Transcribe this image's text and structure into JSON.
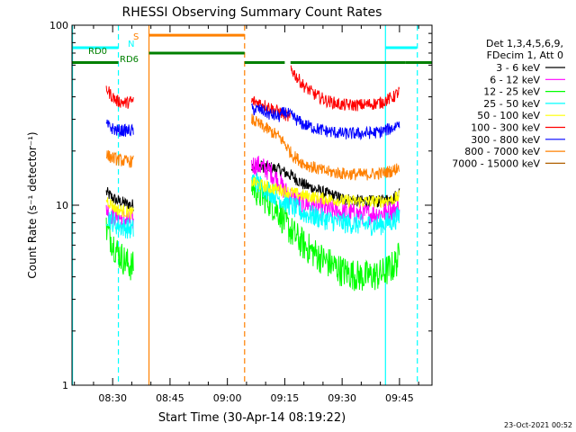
{
  "chart_data": {
    "type": "line",
    "title": "RHESSI Observing Summary Count Rates",
    "xlabel": "Start Time (30-Apr-14 08:19:22)",
    "ylabel": "Count Rate (s⁻¹ detector⁻¹)",
    "yscale": "log",
    "ylim": [
      1,
      100
    ],
    "xlim_minutes": [
      "08:19:22",
      "09:53:30"
    ],
    "y_ticks": [
      "1",
      "10",
      "100"
    ],
    "x_ticks": [
      {
        "label": "08:30",
        "t": "08:30"
      },
      {
        "label": "08:45",
        "t": "08:45"
      },
      {
        "label": "09:00",
        "t": "09:00"
      },
      {
        "label": "09:15",
        "t": "09:15"
      },
      {
        "label": "09:30",
        "t": "09:30"
      },
      {
        "label": "09:45",
        "t": "09:45"
      }
    ],
    "legend": {
      "placement": "right",
      "header": [
        "Det 1,3,4,5,6,9,",
        "FDecim 1, Att 0"
      ]
    },
    "series": [
      {
        "name": "3 - 6 keV",
        "color": "#000000",
        "segments": [
          {
            "x": [
              "08:28:20",
              "08:29:30",
              "08:31:00",
              "08:33:30",
              "08:35:30"
            ],
            "y": [
              11.8,
              11.2,
              10.6,
              10.2,
              10.0
            ]
          },
          {
            "x": [
              "09:06:20",
              "09:08:30",
              "09:11:00",
              "09:13:30",
              "09:15:00",
              "09:17:00",
              "09:20:00",
              "09:25:00",
              "09:30:00",
              "09:35:00",
              "09:40:00",
              "09:43:30",
              "09:45:00"
            ],
            "y": [
              16.5,
              16.5,
              16.2,
              15.8,
              15.2,
              14.5,
              13.0,
              11.8,
              10.9,
              10.5,
              10.5,
              11.0,
              11.8
            ]
          }
        ]
      },
      {
        "name": "6 - 12 keV",
        "color": "#ff00ff",
        "segments": [
          {
            "x": [
              "08:28:20",
              "08:29:30",
              "08:31:00",
              "08:33:30",
              "08:35:30"
            ],
            "y": [
              9.6,
              9.0,
              8.6,
              8.3,
              8.2
            ]
          },
          {
            "x": [
              "09:06:20",
              "09:08:30",
              "09:11:00",
              "09:13:30",
              "09:15:00",
              "09:17:00",
              "09:20:00",
              "09:25:00",
              "09:30:00",
              "09:35:00",
              "09:40:00",
              "09:43:30",
              "09:45:00"
            ],
            "y": [
              16.8,
              16.5,
              15.5,
              13.5,
              12.0,
              11.0,
              10.3,
              9.6,
              9.1,
              8.9,
              9.0,
              9.4,
              9.9
            ]
          }
        ]
      },
      {
        "name": "12 - 25 keV",
        "color": "#00ff00",
        "segments": [
          {
            "x": [
              "08:28:20",
              "08:29:30",
              "08:31:00",
              "08:33:30",
              "08:35:30"
            ],
            "y": [
              7.4,
              6.6,
              5.6,
              4.8,
              4.5
            ]
          },
          {
            "x": [
              "09:06:20",
              "09:08:30",
              "09:11:00",
              "09:13:30",
              "09:15:00",
              "09:17:00",
              "09:20:00",
              "09:25:00",
              "09:30:00",
              "09:35:00",
              "09:40:00",
              "09:43:30",
              "09:45:00"
            ],
            "y": [
              13.0,
              11.5,
              10.5,
              9.2,
              8.0,
              7.0,
              6.0,
              5.0,
              4.3,
              4.0,
              4.1,
              4.6,
              5.2
            ]
          }
        ]
      },
      {
        "name": "25 - 50 keV",
        "color": "#00ffff",
        "segments": [
          {
            "x": [
              "08:28:20",
              "08:29:30",
              "08:31:00",
              "08:33:30",
              "08:35:30"
            ],
            "y": [
              8.8,
              8.3,
              7.8,
              7.5,
              7.3
            ]
          },
          {
            "x": [
              "09:06:20",
              "09:08:30",
              "09:11:00",
              "09:13:30",
              "09:15:00",
              "09:17:00",
              "09:20:00",
              "09:25:00",
              "09:30:00",
              "09:35:00",
              "09:40:00",
              "09:43:30",
              "09:45:00"
            ],
            "y": [
              14.0,
              13.0,
              12.0,
              11.0,
              10.4,
              9.8,
              9.0,
              8.4,
              8.0,
              7.8,
              7.8,
              8.2,
              8.8
            ]
          }
        ]
      },
      {
        "name": "50 - 100 keV",
        "color": "#ffff00",
        "segments": [
          {
            "x": [
              "08:28:20",
              "08:29:30",
              "08:31:00",
              "08:33:30",
              "08:35:30"
            ],
            "y": [
              10.8,
              10.2,
              9.5,
              9.2,
              9.0
            ]
          },
          {
            "x": [
              "09:06:20",
              "09:08:30",
              "09:11:00",
              "09:13:30",
              "09:15:00",
              "09:17:00",
              "09:20:00",
              "09:25:00",
              "09:30:00",
              "09:35:00",
              "09:40:00",
              "09:43:30",
              "09:45:00"
            ],
            "y": [
              13.5,
              13.0,
              12.5,
              12.2,
              12.0,
              11.7,
              11.3,
              10.9,
              10.6,
              10.5,
              10.5,
              10.8,
              11.2
            ]
          }
        ]
      },
      {
        "name": "100 - 300 keV",
        "color": "#ff0000",
        "segments": [
          {
            "x": [
              "08:28:20",
              "08:29:30",
              "08:31:00",
              "08:33:30",
              "08:35:30"
            ],
            "y": [
              45,
              41,
              38,
              37,
              38
            ]
          },
          {
            "x": [
              "09:06:20",
              "09:08:30",
              "09:11:00",
              "09:13:30",
              "09:15:00",
              "09:16:30"
            ],
            "y": [
              38,
              37,
              35,
              33,
              32,
              30
            ]
          },
          {
            "x": [
              "09:16:30",
              "09:18:00",
              "09:20:00",
              "09:23:00",
              "09:26:00",
              "09:30:00",
              "09:35:00",
              "09:40:00",
              "09:43:30",
              "09:45:00"
            ],
            "y": [
              58,
              52,
              46,
              41,
              38,
              36,
              36,
              37,
              40,
              43
            ]
          }
        ]
      },
      {
        "name": "300 - 800 keV",
        "color": "#0000ff",
        "segments": [
          {
            "x": [
              "08:28:20",
              "08:29:30",
              "08:31:00",
              "08:33:30",
              "08:35:30"
            ],
            "y": [
              28,
              27,
              26,
              26,
              26
            ]
          },
          {
            "x": [
              "09:06:20",
              "09:08:30",
              "09:11:00",
              "09:13:30",
              "09:15:00",
              "09:17:00",
              "09:20:00",
              "09:25:00",
              "09:30:00",
              "09:35:00",
              "09:40:00",
              "09:43:30",
              "09:45:00"
            ],
            "y": [
              34,
              34,
              32,
              31,
              33,
              31,
              28,
              26,
              25,
              25,
              25.5,
              27,
              29
            ]
          }
        ]
      },
      {
        "name": "800 - 7000 keV",
        "color": "#ff8000",
        "segments": [
          {
            "x": [
              "08:28:20",
              "08:29:30",
              "08:31:00",
              "08:33:30",
              "08:35:30"
            ],
            "y": [
              19,
              18.5,
              18,
              17.5,
              17.5
            ]
          },
          {
            "x": [
              "09:06:20",
              "09:08:30",
              "09:11:00",
              "09:13:30",
              "09:15:00",
              "09:17:00",
              "09:20:00",
              "09:25:00",
              "09:30:00",
              "09:35:00",
              "09:40:00",
              "09:43:30",
              "09:45:00"
            ],
            "y": [
              30,
              28,
              26,
              24,
              22,
              19,
              17,
              15.5,
              15,
              14.8,
              15,
              15.6,
              16.5
            ]
          }
        ]
      },
      {
        "name": "7000 - 15000 keV",
        "color": "#b06000",
        "segments": []
      }
    ],
    "annotations": {
      "flag_labels": [
        {
          "text": "S",
          "color": "#ff8000"
        },
        {
          "text": "N",
          "color": "#00ffff"
        },
        {
          "text": "RD0",
          "color": "#008000"
        },
        {
          "text": "RD6",
          "color": "#008000"
        }
      ],
      "flag_bars": [
        {
          "color": "#00ffff",
          "y": 75,
          "ranges": [
            [
              "08:19:22",
              "08:31:30"
            ],
            [
              "09:41:20",
              "09:49:30"
            ]
          ]
        },
        {
          "color": "#ff8000",
          "y": 88,
          "ranges": [
            [
              "08:39:30",
              "09:04:30"
            ]
          ]
        },
        {
          "color": "#008000",
          "y": 70,
          "ranges": [
            [
              "08:39:30",
              "09:04:30"
            ]
          ]
        },
        {
          "color": "#008000",
          "y": 62,
          "ranges": [
            [
              "08:19:22",
              "08:31:30"
            ],
            [
              "09:04:30",
              "09:15:00"
            ],
            [
              "09:16:30",
              "09:46:30"
            ],
            [
              "09:46:30",
              "09:53:30"
            ]
          ]
        }
      ],
      "vertical_lines": [
        {
          "t": "08:19:30",
          "color": "#00ffff",
          "style": "solid"
        },
        {
          "t": "08:31:30",
          "color": "#00ffff",
          "style": "dashed"
        },
        {
          "t": "08:39:30",
          "color": "#ff8000",
          "style": "solid"
        },
        {
          "t": "09:04:30",
          "color": "#ff8000",
          "style": "dashed"
        },
        {
          "t": "09:41:20",
          "color": "#00ffff",
          "style": "solid"
        },
        {
          "t": "09:49:40",
          "color": "#00ffff",
          "style": "dashed"
        }
      ],
      "footer_timestamp": "23-Oct-2021 00:52"
    }
  }
}
